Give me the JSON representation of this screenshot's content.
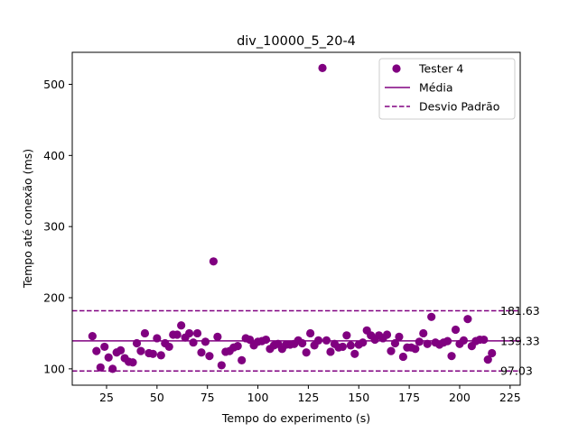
{
  "chart_data": {
    "type": "scatter",
    "title": "div_10000_5_20-4",
    "xlabel": "Tempo do experimento (s)",
    "ylabel": "Tempo até conexão (ms)",
    "xlim": [
      8,
      230
    ],
    "ylim": [
      77,
      545
    ],
    "xticks": [
      25,
      50,
      75,
      100,
      125,
      150,
      175,
      200,
      225
    ],
    "yticks": [
      100,
      200,
      300,
      400,
      500
    ],
    "grid": false,
    "legend_position": "top-right",
    "color": "#800080",
    "series": [
      {
        "name": "Tester 4",
        "kind": "scatter",
        "x": [
          18,
          20,
          22,
          24,
          26,
          28,
          30,
          32,
          34,
          36,
          38,
          40,
          42,
          44,
          46,
          48,
          50,
          52,
          54,
          56,
          58,
          60,
          62,
          64,
          66,
          68,
          70,
          72,
          74,
          76,
          78,
          80,
          82,
          84,
          86,
          88,
          90,
          92,
          94,
          96,
          98,
          100,
          102,
          104,
          106,
          108,
          110,
          112,
          114,
          116,
          118,
          120,
          122,
          124,
          126,
          128,
          130,
          132,
          134,
          136,
          138,
          140,
          142,
          144,
          146,
          148,
          150,
          152,
          154,
          156,
          158,
          160,
          162,
          164,
          166,
          168,
          170,
          172,
          174,
          176,
          178,
          180,
          182,
          184,
          186,
          188,
          190,
          192,
          194,
          196,
          198,
          200,
          202,
          204,
          206,
          208,
          210,
          212,
          214,
          216
        ],
        "y": [
          146,
          125,
          102,
          131,
          116,
          100,
          123,
          126,
          115,
          110,
          109,
          136,
          125,
          150,
          122,
          121,
          143,
          119,
          136,
          131,
          148,
          148,
          161,
          144,
          150,
          137,
          150,
          123,
          138,
          118,
          251,
          145,
          105,
          124,
          125,
          130,
          132,
          112,
          143,
          141,
          133,
          138,
          139,
          141,
          128,
          133,
          135,
          128,
          134,
          134,
          135,
          140,
          136,
          123,
          150,
          133,
          140,
          523,
          140,
          124,
          135,
          130,
          131,
          147,
          133,
          121,
          134,
          137,
          154,
          147,
          141,
          147,
          143,
          148,
          125,
          136,
          145,
          117,
          130,
          130,
          128,
          138,
          150,
          135,
          173,
          137,
          134,
          137,
          139,
          118,
          155,
          135,
          140,
          170,
          132,
          139,
          141,
          141,
          113,
          122
        ]
      },
      {
        "name": "Média",
        "kind": "hline",
        "value": 139.33,
        "label": "139.33",
        "style": "solid"
      },
      {
        "name": "Desvio Padrão",
        "kind": "hline",
        "value": 181.63,
        "label": "181.63",
        "style": "dashed"
      },
      {
        "name": "Desvio Padrão",
        "kind": "hline",
        "value": 97.03,
        "label": "97.03",
        "style": "dashed"
      }
    ],
    "legend": [
      "Tester 4",
      "Média",
      "Desvio Padrão"
    ]
  }
}
